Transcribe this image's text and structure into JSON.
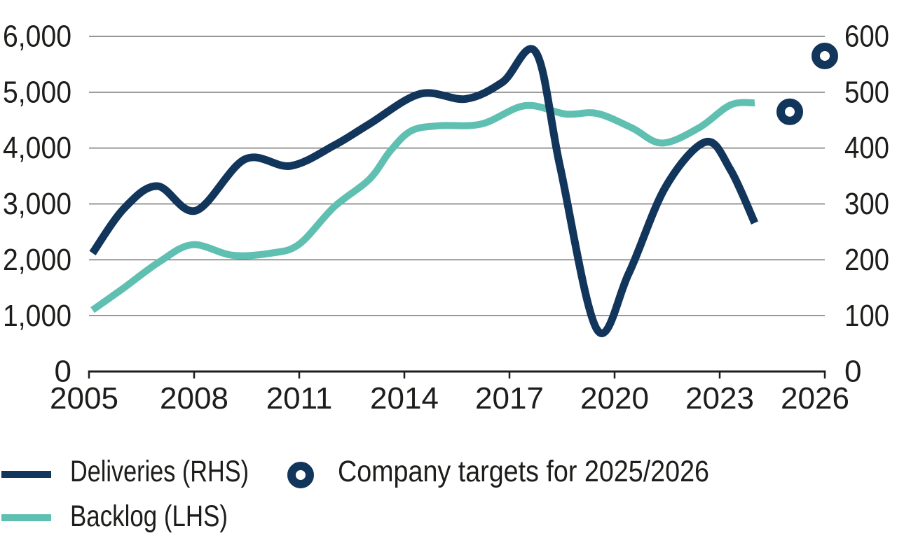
{
  "colors": {
    "navy": "#12355b",
    "teal": "#5fc0b2",
    "gridline": "#737373",
    "axis": "#1d1d1b",
    "background": "#ffffff"
  },
  "legend": {
    "items": [
      {
        "label": "Deliveries (RHS)",
        "swatch": "navy-line"
      },
      {
        "label": "Backlog (LHS)",
        "swatch": "teal-line"
      },
      {
        "label": "Company targets for 2025/2026",
        "swatch": "navy-ring"
      }
    ]
  },
  "chart_data": {
    "type": "line",
    "title": "",
    "grid": "horizontal",
    "x_axis": {
      "min": 2005,
      "max": 2026,
      "tick_years": [
        2005,
        2008,
        2011,
        2014,
        2017,
        2020,
        2023,
        2026
      ],
      "tick_labels": [
        "2005",
        "2008",
        "2011",
        "2014",
        "2017",
        "2020",
        "2023",
        "2026"
      ]
    },
    "left_axis": {
      "min": 0,
      "max": 6000,
      "gridline_values": [
        1000,
        2000,
        3000,
        4000,
        5000,
        6000
      ],
      "tick_labels": [
        "6,000",
        "5,000",
        "4,000",
        "3,000",
        "2,000",
        "1,000",
        "0"
      ]
    },
    "right_axis": {
      "min": 0,
      "max": 600,
      "tick_labels": [
        "600",
        "500",
        "400",
        "300",
        "200",
        "100",
        "0"
      ]
    },
    "series": [
      {
        "name": "Deliveries (RHS)",
        "axis": "right",
        "color": "#12355b",
        "points": [
          [
            2005.1,
            212
          ],
          [
            2006.0,
            292
          ],
          [
            2006.95,
            332
          ],
          [
            2008.05,
            288
          ],
          [
            2009.45,
            380
          ],
          [
            2010.75,
            368
          ],
          [
            2012.0,
            405
          ],
          [
            2013.0,
            443
          ],
          [
            2014.45,
            497
          ],
          [
            2015.75,
            488
          ],
          [
            2016.8,
            518
          ],
          [
            2017.75,
            572
          ],
          [
            2018.45,
            365
          ],
          [
            2019.5,
            75
          ],
          [
            2020.4,
            175
          ],
          [
            2021.45,
            330
          ],
          [
            2022.6,
            411
          ],
          [
            2023.3,
            362
          ],
          [
            2024.0,
            266
          ]
        ]
      },
      {
        "name": "Backlog (LHS)",
        "axis": "left",
        "color": "#5fc0b2",
        "points": [
          [
            2005.1,
            1100
          ],
          [
            2006.0,
            1500
          ],
          [
            2007.0,
            1960
          ],
          [
            2007.95,
            2270
          ],
          [
            2009.1,
            2080
          ],
          [
            2010.2,
            2120
          ],
          [
            2011.0,
            2280
          ],
          [
            2012.0,
            2950
          ],
          [
            2013.0,
            3440
          ],
          [
            2013.6,
            3950
          ],
          [
            2014.2,
            4310
          ],
          [
            2015.0,
            4400
          ],
          [
            2016.2,
            4430
          ],
          [
            2017.45,
            4760
          ],
          [
            2018.6,
            4610
          ],
          [
            2019.5,
            4620
          ],
          [
            2020.5,
            4360
          ],
          [
            2021.35,
            4090
          ],
          [
            2022.4,
            4360
          ],
          [
            2023.3,
            4770
          ],
          [
            2024.0,
            4810
          ]
        ]
      }
    ],
    "targets": {
      "name": "Company targets for 2025/2026",
      "axis": "right",
      "points": [
        [
          2025,
          465
        ],
        [
          2026,
          565
        ]
      ]
    }
  }
}
